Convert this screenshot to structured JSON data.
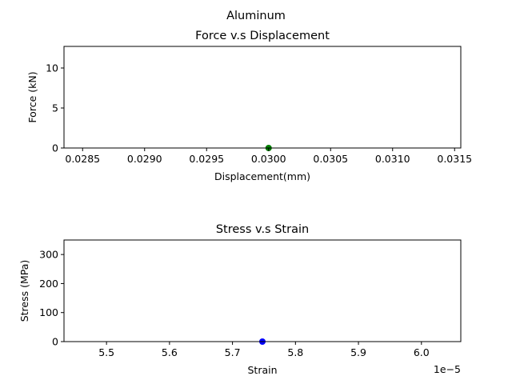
{
  "figure": {
    "suptitle": "Aluminum"
  },
  "chart_data": [
    {
      "type": "scatter",
      "title": "Force v.s Displacement",
      "xlabel": "Displacement(mm)",
      "ylabel": "Force (kN)",
      "xlim": [
        0.02835,
        0.03155
      ],
      "ylim": [
        0,
        12.7
      ],
      "xticks": [
        0.0285,
        0.029,
        0.0295,
        0.03,
        0.0305,
        0.031,
        0.0315
      ],
      "xtick_labels": [
        "0.0285",
        "0.0290",
        "0.0295",
        "0.0300",
        "0.0305",
        "0.0310",
        "0.0315"
      ],
      "yticks": [
        0,
        5,
        10
      ],
      "ytick_labels": [
        "0",
        "5",
        "10"
      ],
      "offset_text": "",
      "grid": false,
      "series": [
        {
          "color": "#008000",
          "points": [
            {
              "x": 0.03,
              "y": 0
            }
          ]
        }
      ]
    },
    {
      "type": "scatter",
      "title": "Stress v.s Strain",
      "xlabel": "Strain",
      "ylabel": "Stress (MPa)",
      "xlim": [
        5.4325,
        6.0625
      ],
      "ylim": [
        0,
        350
      ],
      "xticks": [
        5.5,
        5.6,
        5.7,
        5.8,
        5.9,
        6.0
      ],
      "xtick_labels": [
        "5.5",
        "5.6",
        "5.7",
        "5.8",
        "5.9",
        "6.0"
      ],
      "yticks": [
        0,
        100,
        200,
        300
      ],
      "ytick_labels": [
        "0",
        "100",
        "200",
        "300"
      ],
      "offset_text": "1e−5",
      "grid": false,
      "series": [
        {
          "color": "#0000ff",
          "points": [
            {
              "x": 5.7475,
              "y": 0
            }
          ]
        }
      ]
    }
  ]
}
